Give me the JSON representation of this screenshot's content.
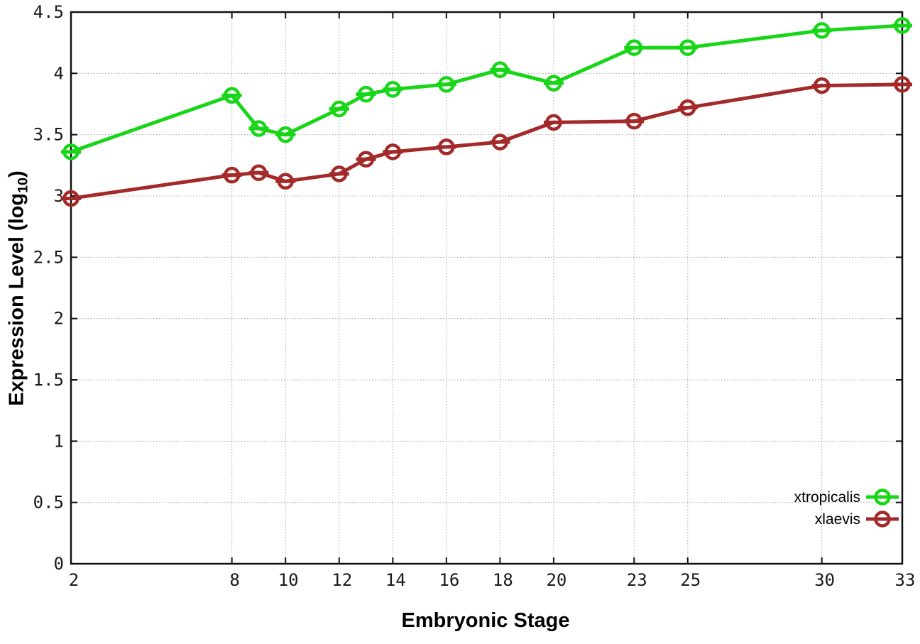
{
  "chart_data": {
    "type": "line",
    "title": "",
    "xlabel": "Embryonic Stage",
    "ylabel": "Expression Level (log10)",
    "ylabel_parts": {
      "prefix": "Expression Level (log",
      "sub": "10",
      "suffix": ")"
    },
    "x": [
      2,
      8,
      9,
      10,
      12,
      13,
      14,
      16,
      18,
      20,
      23,
      25,
      30,
      33
    ],
    "xticks": [
      2,
      8,
      10,
      12,
      14,
      16,
      18,
      20,
      23,
      25,
      30,
      33
    ],
    "yticks": [
      0,
      0.5,
      1,
      1.5,
      2,
      2.5,
      3,
      3.5,
      4,
      4.5
    ],
    "xlim": [
      2,
      33
    ],
    "ylim": [
      0,
      4.5
    ],
    "grid": true,
    "legend_position": "bottom-right",
    "series": [
      {
        "name": "xtropicalis",
        "color": "#17d617",
        "values": [
          3.36,
          3.82,
          3.55,
          3.5,
          3.71,
          3.83,
          3.87,
          3.91,
          4.03,
          3.92,
          4.21,
          4.21,
          4.35,
          4.39
        ]
      },
      {
        "name": "xlaevis",
        "color": "#a42a2a",
        "values": [
          2.98,
          3.17,
          3.19,
          3.12,
          3.18,
          3.3,
          3.36,
          3.4,
          3.44,
          3.6,
          3.61,
          3.72,
          3.9,
          3.91
        ]
      }
    ]
  },
  "style_colors": {
    "grid": "#a8a8a8",
    "axis": "#111111",
    "tick_text": "#1a1a1a"
  }
}
